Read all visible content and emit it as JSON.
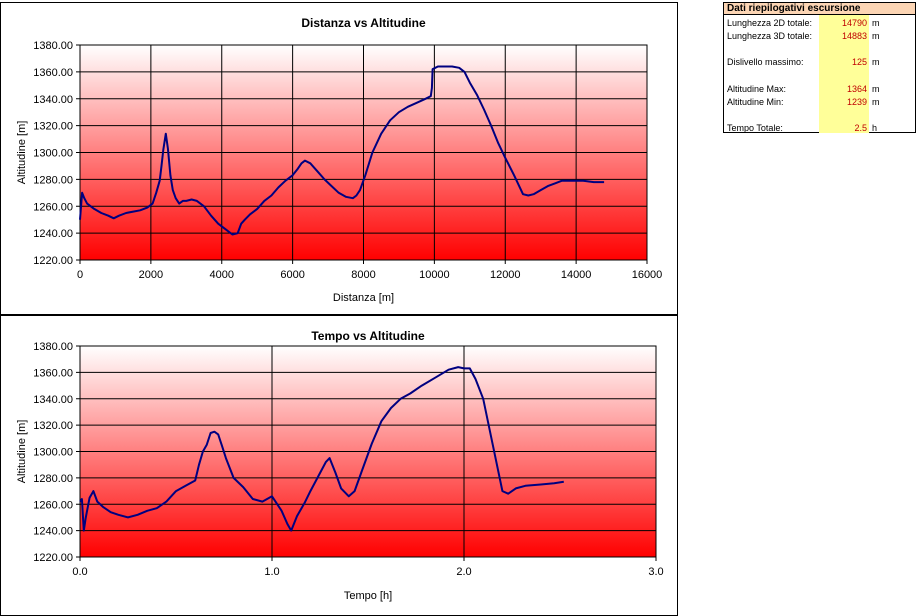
{
  "summary": {
    "title": "Dati riepilogativi escursione",
    "rows": [
      {
        "label": "Lunghezza 2D totale:",
        "value": "14790",
        "unit": "m"
      },
      {
        "label": "Lunghezza 3D totale:",
        "value": "14883",
        "unit": "m"
      },
      {
        "label": "Dislivello massimo:",
        "value": "125",
        "unit": "m"
      },
      {
        "label": "Altitudine Max:",
        "value": "1364",
        "unit": "m"
      },
      {
        "label": "Altitudine Min:",
        "value": "1239",
        "unit": "m"
      },
      {
        "label": "Tempo Totale:",
        "value": "2.5",
        "unit": "h"
      }
    ]
  },
  "colors": {
    "line": "#000080",
    "gradient_top": "#ffffff",
    "gradient_bottom": "#ff0000"
  },
  "chart_data": [
    {
      "type": "line",
      "title": "Distanza vs Altitudine",
      "xlabel": "Distanza [m]",
      "ylabel": "Altitudine [m]",
      "xlim": [
        0,
        16000
      ],
      "ylim": [
        1220,
        1380
      ],
      "xticks": [
        0,
        2000,
        4000,
        6000,
        8000,
        10000,
        12000,
        14000,
        16000
      ],
      "xtick_labels": [
        "0",
        "2000",
        "4000",
        "6000",
        "8000",
        "10000",
        "12000",
        "14000",
        "16000"
      ],
      "yticks": [
        1220,
        1240,
        1260,
        1280,
        1300,
        1320,
        1340,
        1360,
        1380
      ],
      "ytick_labels": [
        "1220.00",
        "1240.00",
        "1260.00",
        "1280.00",
        "1300.00",
        "1320.00",
        "1340.00",
        "1360.00",
        "1380.00"
      ],
      "grid": true,
      "series": [
        {
          "x": [
            0,
            60,
            120,
            200,
            400,
            600,
            800,
            950,
            1100,
            1300,
            1500,
            1700,
            1900,
            2050,
            2150,
            2250,
            2300,
            2350,
            2420,
            2480,
            2550,
            2620,
            2700,
            2800,
            2900,
            3000,
            3150,
            3300,
            3500,
            3700,
            3900,
            4100,
            4300,
            4450,
            4550,
            4650,
            4800,
            5000,
            5200,
            5400,
            5600,
            5800,
            6000,
            6150,
            6250,
            6350,
            6500,
            6700,
            6900,
            7100,
            7300,
            7500,
            7700,
            7800,
            7900,
            8050,
            8250,
            8500,
            8750,
            9000,
            9250,
            9500,
            9750,
            9900,
            9930,
            9950,
            10100,
            10300,
            10500,
            10700,
            10850,
            11000,
            11200,
            11400,
            11600,
            11800,
            12000,
            12250,
            12500,
            12650,
            12800,
            13000,
            13200,
            13400,
            13600,
            13900,
            14200,
            14500,
            14790
          ],
          "y": [
            1250,
            1270,
            1266,
            1262,
            1258,
            1255,
            1253,
            1251,
            1253,
            1255,
            1256,
            1257,
            1259,
            1262,
            1270,
            1279,
            1290,
            1302,
            1314,
            1303,
            1283,
            1272,
            1266,
            1262,
            1264,
            1264,
            1265,
            1264,
            1260,
            1253,
            1247,
            1243,
            1239,
            1240,
            1247,
            1250,
            1254,
            1258,
            1264,
            1268,
            1274,
            1279,
            1283,
            1288,
            1292,
            1294,
            1292,
            1286,
            1280,
            1275,
            1270,
            1267,
            1266,
            1268,
            1272,
            1283,
            1300,
            1314,
            1324,
            1330,
            1334,
            1337,
            1340,
            1342,
            1348,
            1362,
            1364,
            1364,
            1364,
            1363,
            1360,
            1352,
            1343,
            1332,
            1320,
            1307,
            1296,
            1283,
            1269,
            1268,
            1269,
            1272,
            1275,
            1277,
            1279,
            1279,
            1279,
            1278,
            1278
          ]
        }
      ]
    },
    {
      "type": "line",
      "title": "Tempo vs Altitudine",
      "xlabel": "Tempo [h]",
      "ylabel": "Altitudine [m]",
      "xlim": [
        0,
        3
      ],
      "ylim": [
        1220,
        1380
      ],
      "xticks": [
        0,
        1,
        2,
        3
      ],
      "xtick_labels": [
        "0.0",
        "1.0",
        "2.0",
        "3.0"
      ],
      "yticks": [
        1220,
        1240,
        1260,
        1280,
        1300,
        1320,
        1340,
        1360,
        1380
      ],
      "ytick_labels": [
        "1220.00",
        "1240.00",
        "1260.00",
        "1280.00",
        "1300.00",
        "1320.00",
        "1340.00",
        "1360.00",
        "1380.00"
      ],
      "grid": true,
      "series": [
        {
          "x": [
            0,
            0.01,
            0.02,
            0.03,
            0.05,
            0.07,
            0.09,
            0.12,
            0.16,
            0.2,
            0.25,
            0.3,
            0.35,
            0.4,
            0.45,
            0.5,
            0.55,
            0.6,
            0.62,
            0.64,
            0.66,
            0.68,
            0.7,
            0.72,
            0.74,
            0.76,
            0.8,
            0.85,
            0.9,
            0.95,
            1.0,
            1.05,
            1.08,
            1.1,
            1.13,
            1.17,
            1.2,
            1.24,
            1.28,
            1.3,
            1.33,
            1.36,
            1.4,
            1.43,
            1.47,
            1.52,
            1.57,
            1.62,
            1.67,
            1.72,
            1.78,
            1.85,
            1.92,
            1.97,
            2.0,
            2.03,
            2.06,
            2.1,
            2.15,
            2.2,
            2.23,
            2.27,
            2.32,
            2.4,
            2.47,
            2.52
          ],
          "y": [
            1262,
            1264,
            1240,
            1250,
            1265,
            1270,
            1262,
            1258,
            1254,
            1252,
            1250,
            1252,
            1255,
            1257,
            1262,
            1270,
            1274,
            1278,
            1290,
            1300,
            1305,
            1314,
            1315,
            1313,
            1304,
            1295,
            1280,
            1273,
            1264,
            1262,
            1266,
            1255,
            1245,
            1240,
            1251,
            1261,
            1270,
            1281,
            1292,
            1295,
            1284,
            1272,
            1266,
            1270,
            1286,
            1306,
            1323,
            1333,
            1340,
            1344,
            1350,
            1356,
            1362,
            1364,
            1363,
            1363,
            1355,
            1340,
            1305,
            1270,
            1268,
            1272,
            1274,
            1275,
            1276,
            1277
          ]
        }
      ]
    }
  ]
}
